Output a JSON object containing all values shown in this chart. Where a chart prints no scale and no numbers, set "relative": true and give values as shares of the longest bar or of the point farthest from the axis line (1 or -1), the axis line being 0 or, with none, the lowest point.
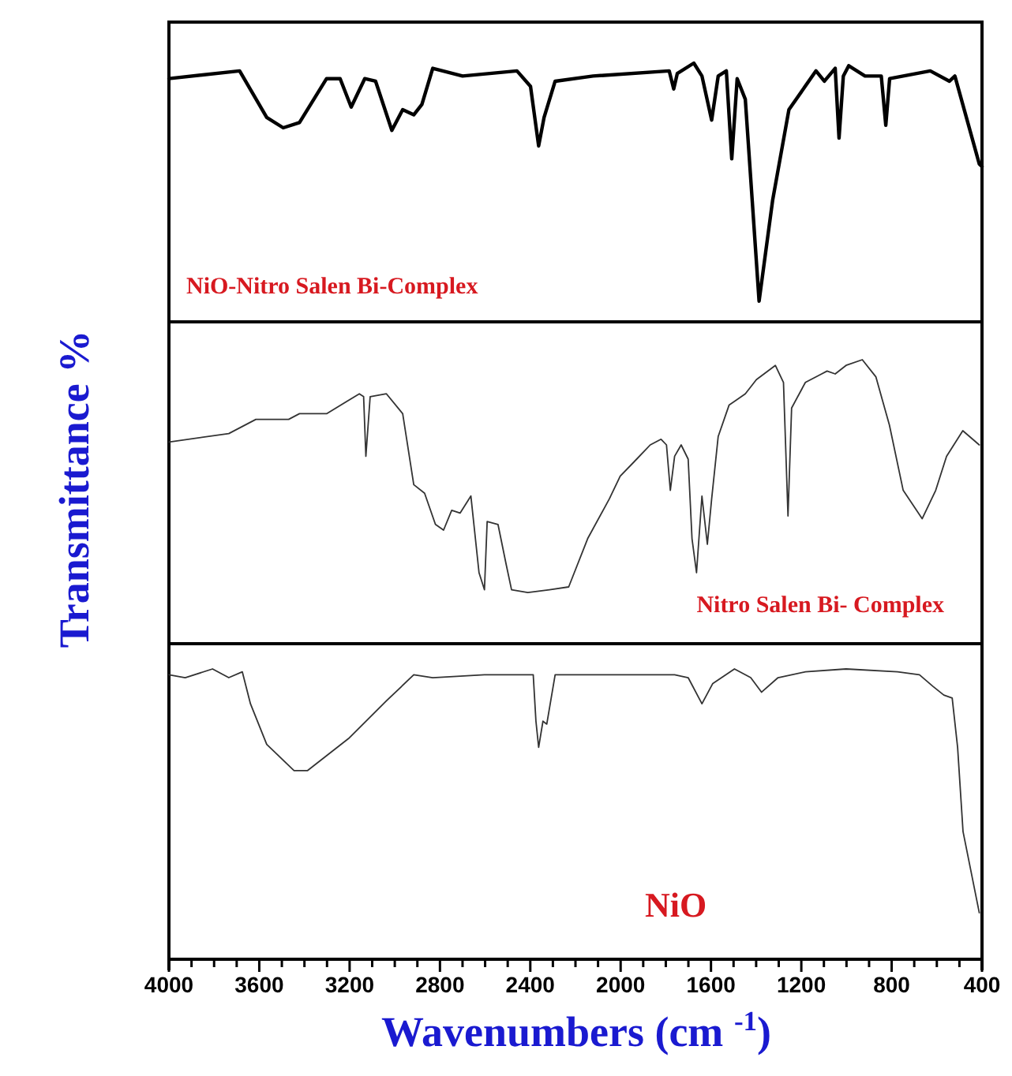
{
  "chart_data": [
    {
      "type": "line",
      "relative": true,
      "xlim": [
        4000,
        400
      ],
      "tick_labels": false,
      "series": [
        {
          "name": "NiO-Nitro Salen Bi-Complex",
          "color": "#000000",
          "x": [
            4000,
            3687,
            3567,
            3494,
            3422,
            3302,
            3242,
            3193,
            3133,
            3085,
            3013,
            2965,
            2916,
            2880,
            2832,
            2700,
            2459,
            2399,
            2363,
            2339,
            2290,
            2122,
            1785,
            1765,
            1749,
            1676,
            1640,
            1597,
            1568,
            1532,
            1508,
            1484,
            1448,
            1387,
            1327,
            1255,
            1135,
            1098,
            1050,
            1033,
            1014,
            990,
            918,
            846,
            826,
            809,
            629,
            544,
            520,
            412,
            400
          ],
          "values": [
            0.94,
            0.97,
            0.79,
            0.75,
            0.77,
            0.94,
            0.94,
            0.83,
            0.94,
            0.93,
            0.74,
            0.82,
            0.8,
            0.84,
            0.98,
            0.95,
            0.97,
            0.91,
            0.68,
            0.79,
            0.93,
            0.95,
            0.97,
            0.9,
            0.96,
            1.0,
            0.95,
            0.78,
            0.95,
            0.97,
            0.63,
            0.94,
            0.86,
            0.08,
            0.47,
            0.82,
            0.97,
            0.93,
            0.98,
            0.71,
            0.95,
            0.99,
            0.95,
            0.95,
            0.76,
            0.94,
            0.97,
            0.93,
            0.95,
            0.61,
            0.6
          ]
        }
      ]
    },
    {
      "type": "line",
      "relative": true,
      "xlim": [
        4000,
        400
      ],
      "tick_labels": false,
      "ylabel": "Transmittance %",
      "series": [
        {
          "name": "Nitro Salen Bi- Complex",
          "color": "#333333",
          "x": [
            4000,
            3735,
            3615,
            3470,
            3422,
            3302,
            3157,
            3138,
            3128,
            3109,
            3037,
            2965,
            2916,
            2868,
            2820,
            2784,
            2748,
            2711,
            2663,
            2627,
            2603,
            2591,
            2543,
            2507,
            2483,
            2411,
            2315,
            2230,
            2146,
            2050,
            2002,
            1929,
            1869,
            1821,
            1797,
            1780,
            1761,
            1732,
            1701,
            1684,
            1664,
            1640,
            1616,
            1597,
            1568,
            1520,
            1448,
            1399,
            1315,
            1279,
            1259,
            1243,
            1182,
            1110,
            1086,
            1050,
            1002,
            930,
            870,
            810,
            749,
            665,
            605,
            557,
            485,
            412
          ],
          "values": [
            0.71,
            0.74,
            0.79,
            0.79,
            0.81,
            0.81,
            0.88,
            0.87,
            0.66,
            0.87,
            0.88,
            0.81,
            0.56,
            0.53,
            0.42,
            0.4,
            0.47,
            0.46,
            0.52,
            0.25,
            0.19,
            0.43,
            0.42,
            0.28,
            0.19,
            0.18,
            0.19,
            0.2,
            0.37,
            0.51,
            0.59,
            0.65,
            0.7,
            0.72,
            0.7,
            0.54,
            0.66,
            0.7,
            0.65,
            0.37,
            0.25,
            0.52,
            0.35,
            0.51,
            0.73,
            0.84,
            0.88,
            0.93,
            0.98,
            0.92,
            0.45,
            0.83,
            0.92,
            0.95,
            0.96,
            0.95,
            0.98,
            1.0,
            0.94,
            0.77,
            0.54,
            0.44,
            0.54,
            0.66,
            0.75,
            0.7
          ]
        }
      ]
    },
    {
      "type": "line",
      "relative": true,
      "xlim": [
        4000,
        400
      ],
      "tick_labels": "x",
      "xlabel": "Wavenumbers (cm $^{-1}$)",
      "xticks": [
        4000,
        {
          "value": 3900,
          "label": null
        },
        {
          "value": 3800,
          "label": null
        },
        {
          "value": 3700,
          "label": null
        },
        3600,
        {
          "value": 3500,
          "label": null
        },
        {
          "value": 3400,
          "label": null
        },
        {
          "value": 3300,
          "label": null
        },
        3200,
        {
          "value": 3100,
          "label": null
        },
        {
          "value": 3000,
          "label": null
        },
        {
          "value": 2900,
          "label": null
        },
        2800,
        {
          "value": 2700,
          "label": null
        },
        {
          "value": 2600,
          "label": null
        },
        {
          "value": 2500,
          "label": null
        },
        2400,
        {
          "value": 2300,
          "label": null
        },
        {
          "value": 2200,
          "label": null
        },
        {
          "value": 2100,
          "label": null
        },
        2000,
        {
          "value": 1900,
          "label": null
        },
        {
          "value": 1800,
          "label": null
        },
        {
          "value": 1700,
          "label": null
        },
        1600,
        {
          "value": 1500,
          "label": null
        },
        {
          "value": 1400,
          "label": null
        },
        {
          "value": 1300,
          "label": null
        },
        1200,
        {
          "value": 1100,
          "label": null
        },
        {
          "value": 1000,
          "label": null
        },
        {
          "value": 900,
          "label": null
        },
        800,
        {
          "value": 700,
          "label": null
        },
        {
          "value": 600,
          "label": null
        },
        {
          "value": 500,
          "label": null
        },
        400
      ],
      "series": [
        {
          "name": "NiO",
          "color": "#333333",
          "x": [
            4000,
            3928,
            3807,
            3735,
            3675,
            3639,
            3567,
            3446,
            3386,
            3205,
            3037,
            2916,
            2832,
            2603,
            2387,
            2375,
            2363,
            2344,
            2327,
            2290,
            1761,
            1701,
            1640,
            1592,
            1496,
            1424,
            1376,
            1303,
            1182,
            1002,
            774,
            677,
            617,
            569,
            532,
            508,
            484,
            412
          ],
          "values": [
            0.98,
            0.97,
            1.0,
            0.97,
            0.99,
            0.88,
            0.74,
            0.65,
            0.65,
            0.76,
            0.89,
            0.98,
            0.97,
            0.98,
            0.98,
            0.82,
            0.73,
            0.82,
            0.81,
            0.98,
            0.98,
            0.97,
            0.88,
            0.95,
            1.0,
            0.97,
            0.92,
            0.97,
            0.99,
            1.0,
            0.99,
            0.98,
            0.94,
            0.91,
            0.9,
            0.73,
            0.44,
            0.16
          ]
        }
      ]
    }
  ]
}
